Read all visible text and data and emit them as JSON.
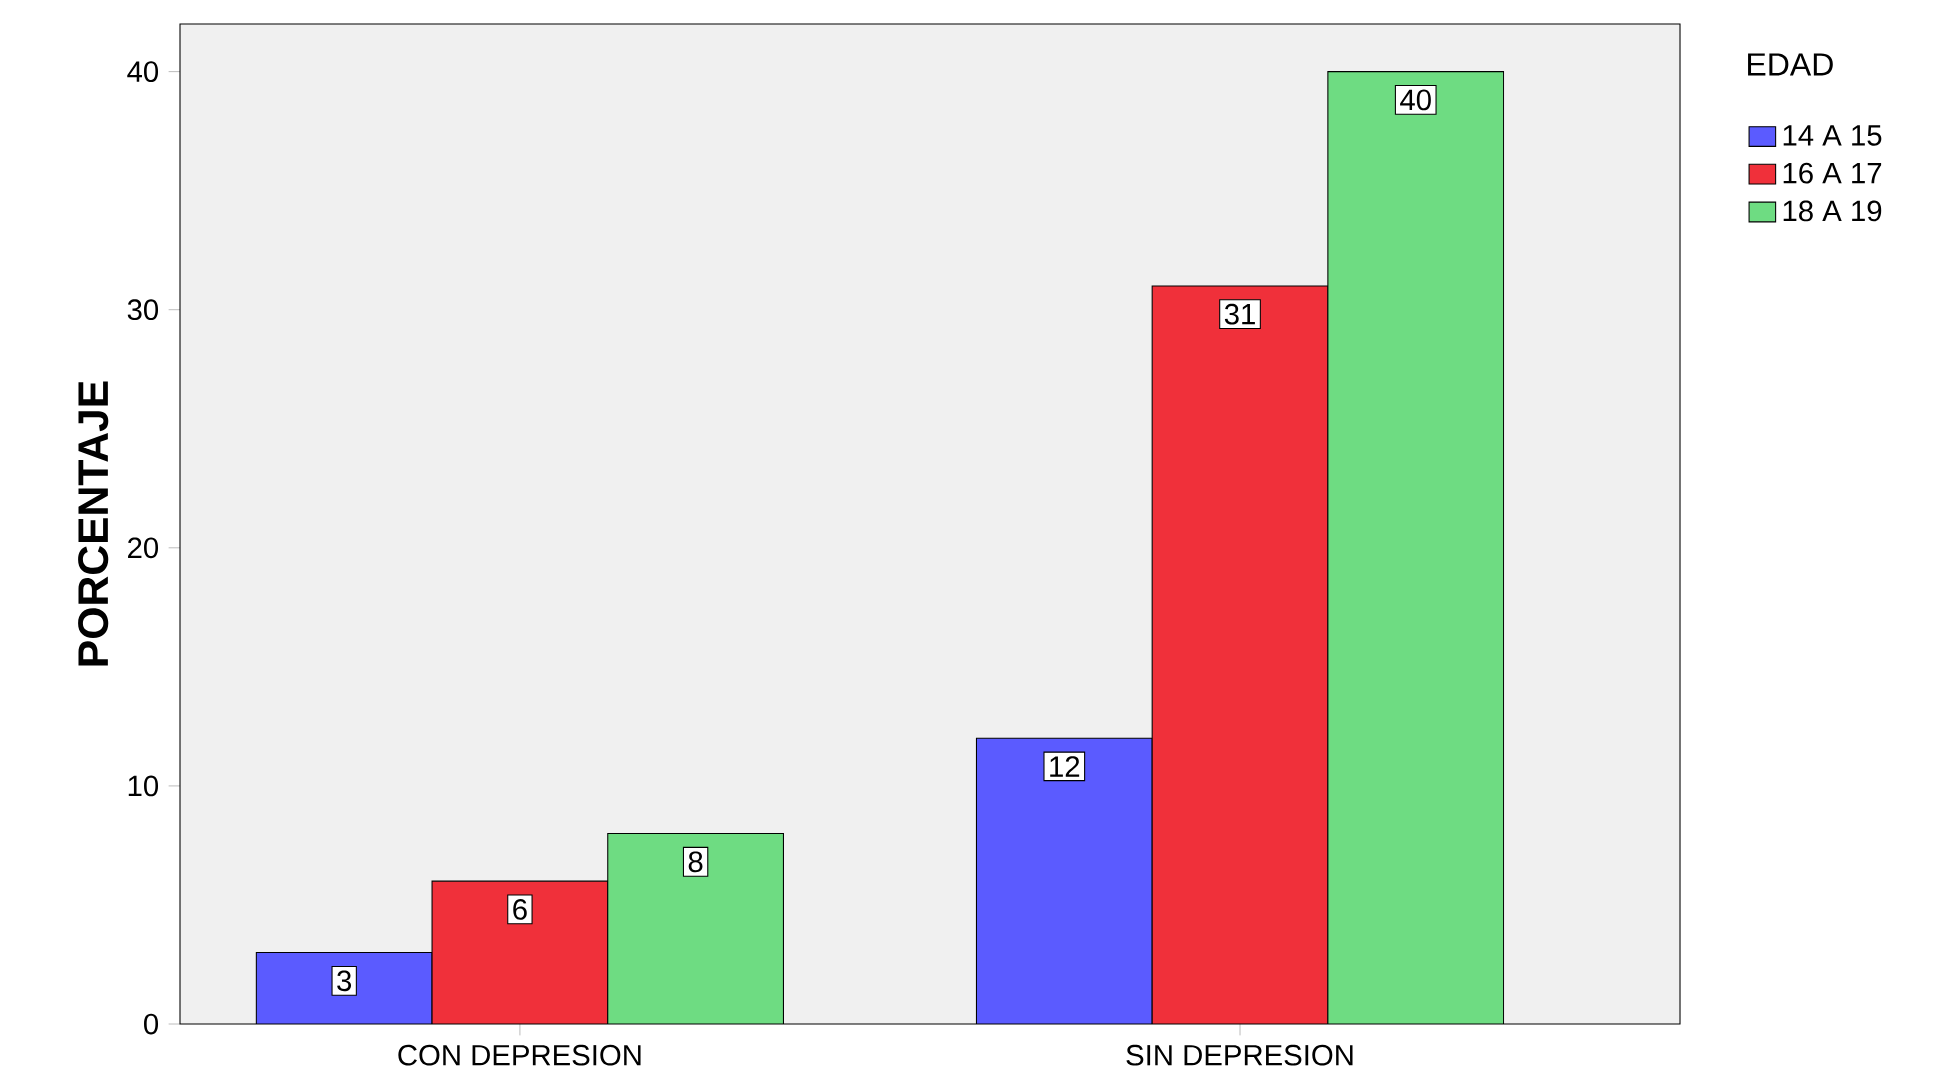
{
  "chart_data": {
    "type": "bar",
    "ylabel": "PORCENTAJE",
    "legend_title": "EDAD",
    "categories": [
      "CON DEPRESION",
      "SIN DEPRESION"
    ],
    "series": [
      {
        "name": "14 A 15",
        "color": "#5b5bff",
        "values": [
          3,
          12
        ]
      },
      {
        "name": "16 A 17",
        "color": "#f0303a",
        "values": [
          6,
          31
        ]
      },
      {
        "name": "18 A 19",
        "color": "#6edc82",
        "values": [
          8,
          40
        ]
      }
    ],
    "ylim": [
      0,
      42
    ],
    "yticks": [
      0,
      10,
      20,
      30,
      40
    ],
    "data_labels": true,
    "legend": "top right",
    "grid": false
  }
}
